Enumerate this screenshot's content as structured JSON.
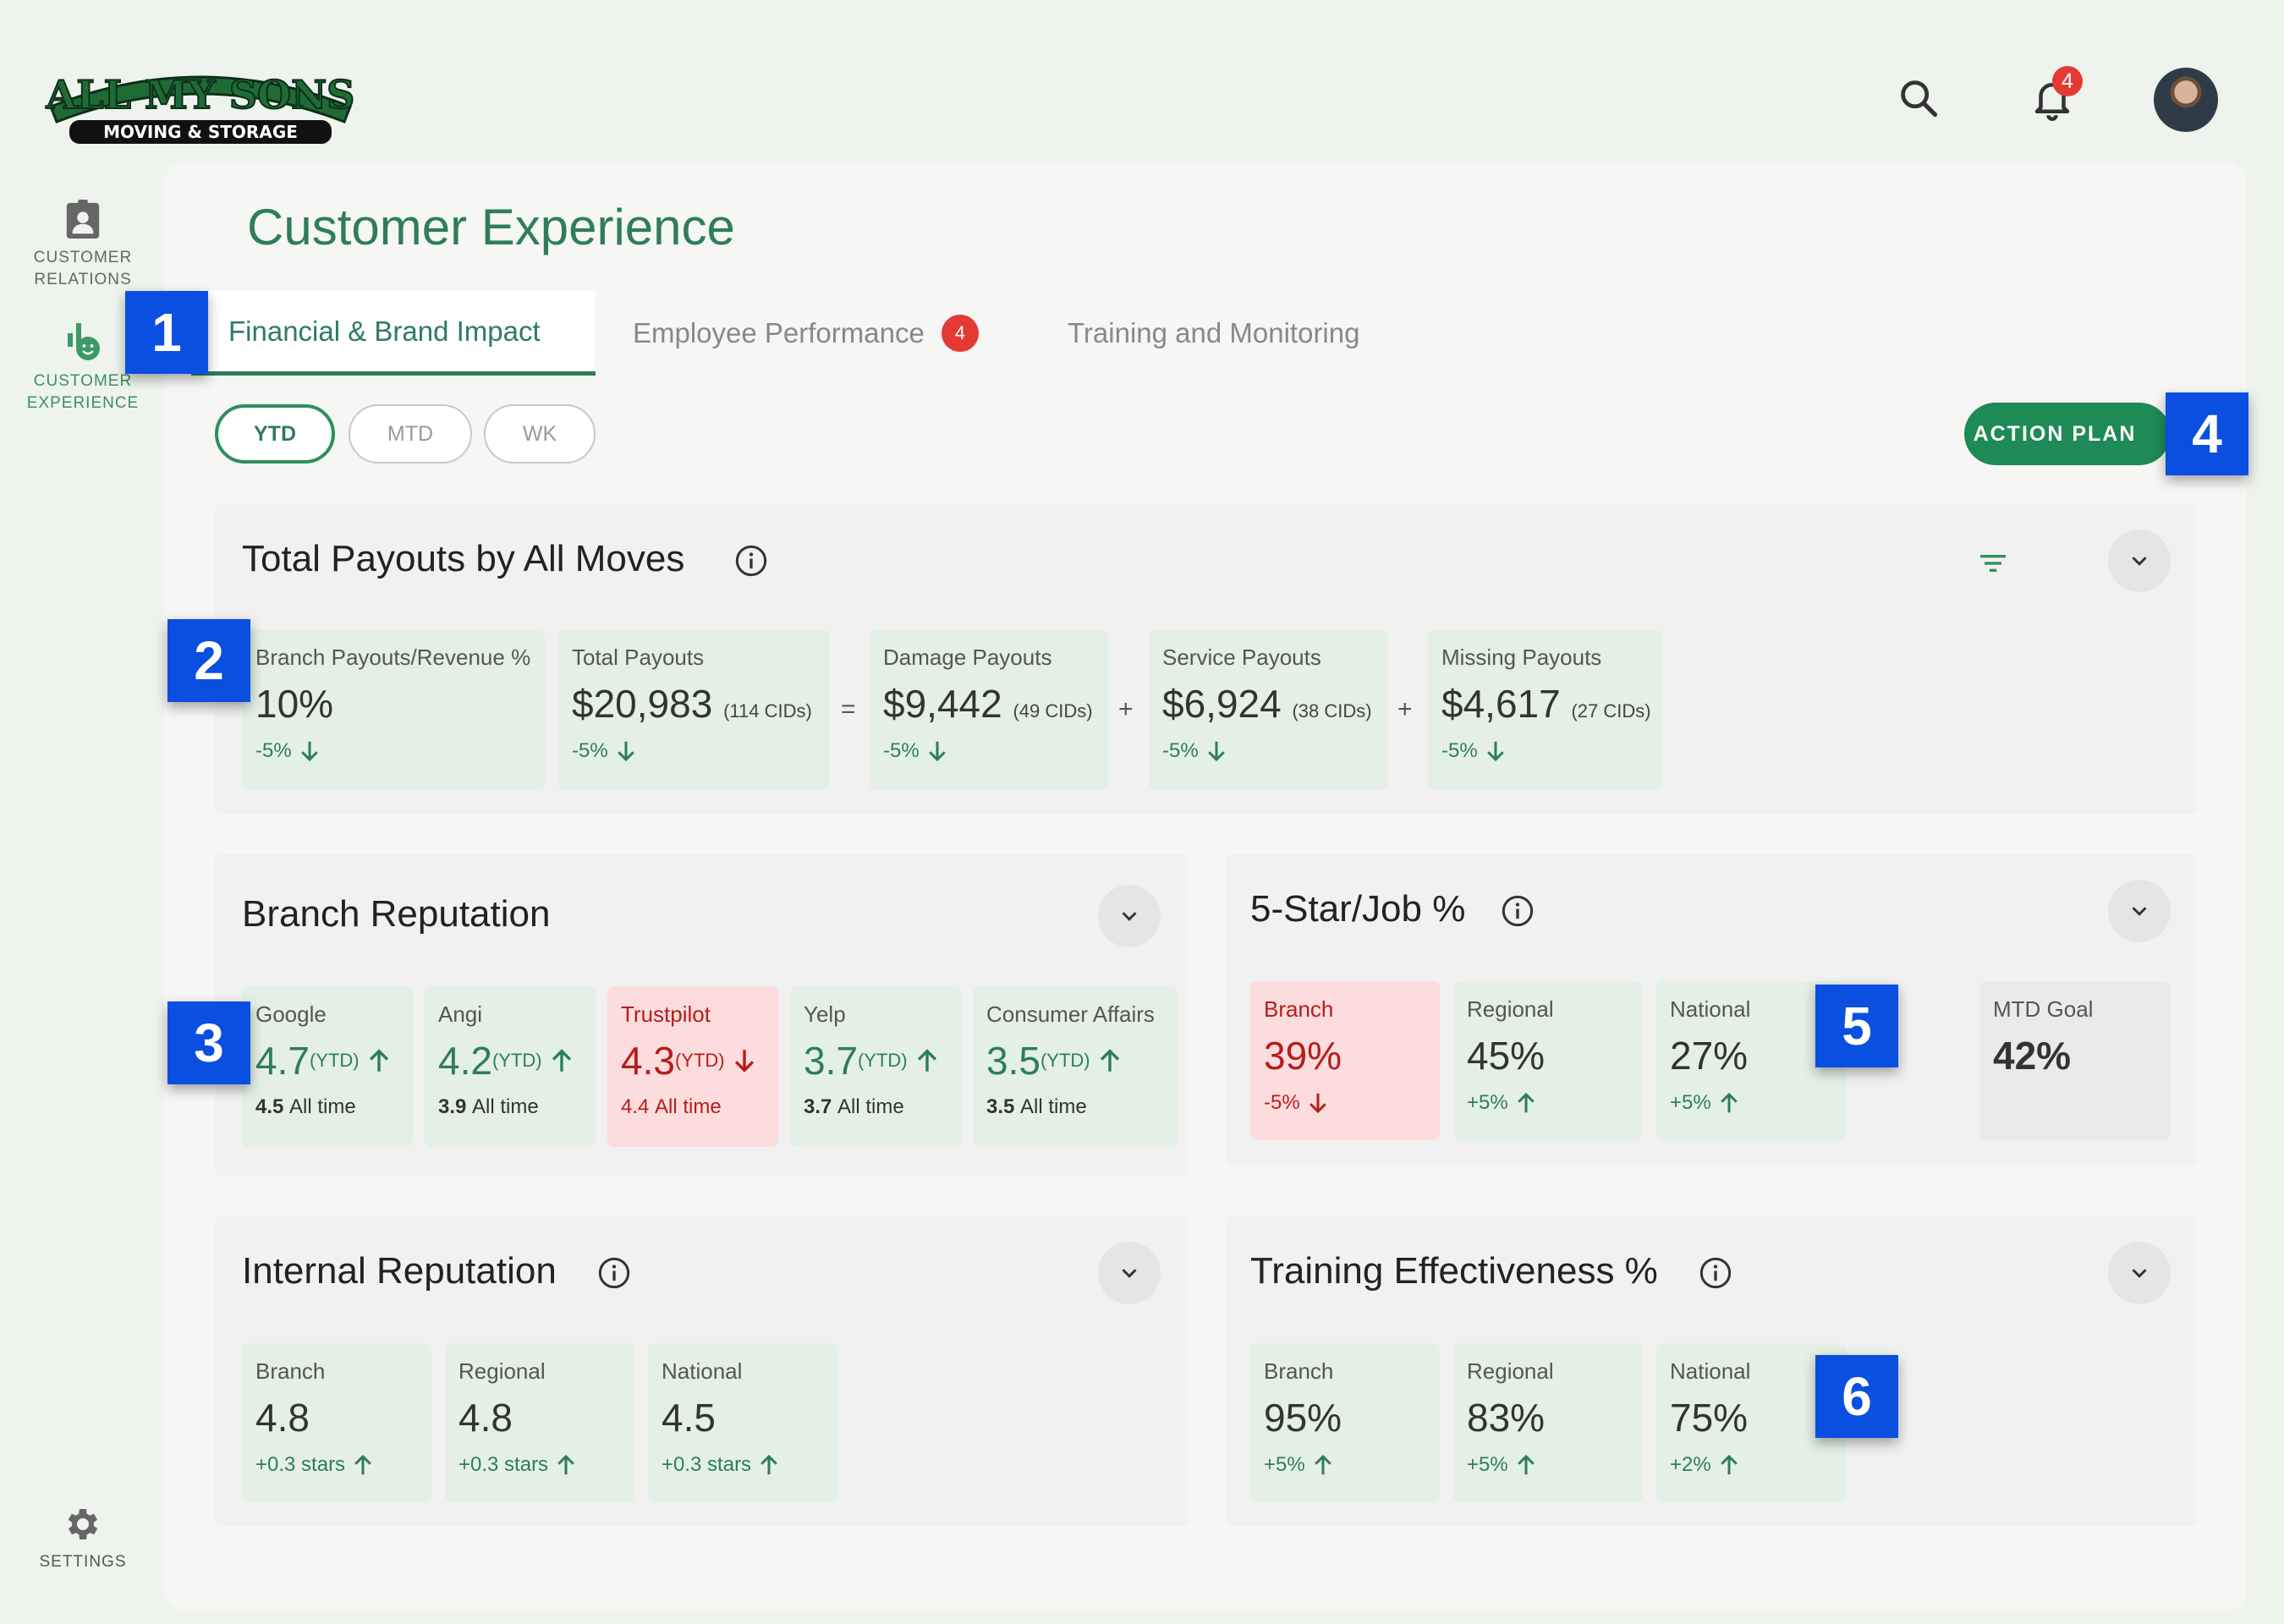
{
  "brand": {
    "logo_line1": "ALL MY SONS",
    "logo_line2": "MOVING & STORAGE",
    "accent": "#2e7d5b",
    "button_green": "#1e8a56",
    "alert_red": "#e53935",
    "marker_blue": "#0a4fe0"
  },
  "header": {
    "search_icon": "search-icon",
    "notification_count": "4"
  },
  "nav": {
    "customer_relations": "CUSTOMER RELATIONS",
    "customer_experience": "CUSTOMER EXPERIENCE",
    "settings": "SETTINGS"
  },
  "page": {
    "title": "Customer Experience"
  },
  "tabs": {
    "financial": "Financial & Brand Impact",
    "employee": "Employee Performance",
    "employee_badge": "4",
    "training": "Training and Monitoring"
  },
  "periods": {
    "ytd": "YTD",
    "mtd": "MTD",
    "wk": "WK"
  },
  "action_plan": "ACTION PLAN",
  "markers": [
    "1",
    "2",
    "3",
    "4",
    "5",
    "6"
  ],
  "payouts": {
    "title": "Total Payouts by All Moves",
    "cards": [
      {
        "label": "Branch Payouts/Revenue %",
        "value": "10%",
        "cids": "",
        "change": "-5%",
        "direction": "down"
      },
      {
        "label": "Total Payouts",
        "value": "$20,983",
        "cids": "(114 CIDs)",
        "change": "-5%",
        "direction": "down"
      },
      {
        "label": "Damage Payouts",
        "value": "$9,442",
        "cids": "(49 CIDs)",
        "change": "-5%",
        "direction": "down"
      },
      {
        "label": "Service Payouts",
        "value": "$6,924",
        "cids": "(38 CIDs)",
        "change": "-5%",
        "direction": "down"
      },
      {
        "label": "Missing Payouts",
        "value": "$4,617",
        "cids": "(27 CIDs)",
        "change": "-5%",
        "direction": "down"
      }
    ],
    "operators": [
      "=",
      "+",
      "+"
    ]
  },
  "branch_reputation": {
    "title": "Branch Reputation",
    "ytd_tag": "(YTD)",
    "all_time_suffix": "All time",
    "cards": [
      {
        "label": "Google",
        "value": "4.7",
        "all_time": "4.5",
        "direction": "up"
      },
      {
        "label": "Angi",
        "value": "4.2",
        "all_time": "3.9",
        "direction": "up"
      },
      {
        "label": "Trustpilot",
        "value": "4.3",
        "all_time": "4.4",
        "direction": "down"
      },
      {
        "label": "Yelp",
        "value": "3.7",
        "all_time": "3.7",
        "direction": "up"
      },
      {
        "label": "Consumer Affairs",
        "value": "3.5",
        "all_time": "3.5",
        "direction": "up"
      }
    ]
  },
  "five_star": {
    "title": "5-Star/Job %",
    "cards": [
      {
        "label": "Branch",
        "value": "39%",
        "change": "-5%",
        "direction": "down"
      },
      {
        "label": "Regional",
        "value": "45%",
        "change": "+5%",
        "direction": "up"
      },
      {
        "label": "National",
        "value": "27%",
        "change": "+5%",
        "direction": "up"
      }
    ],
    "goal": {
      "label": "MTD Goal",
      "value": "42%"
    }
  },
  "internal_reputation": {
    "title": "Internal Reputation",
    "cards": [
      {
        "label": "Branch",
        "value": "4.8",
        "change": "+0.3 stars",
        "direction": "up"
      },
      {
        "label": "Regional",
        "value": "4.8",
        "change": "+0.3 stars",
        "direction": "up"
      },
      {
        "label": "National",
        "value": "4.5",
        "change": "+0.3 stars",
        "direction": "up"
      }
    ]
  },
  "training_effectiveness": {
    "title": "Training Effectiveness %",
    "cards": [
      {
        "label": "Branch",
        "value": "95%",
        "change": "+5%",
        "direction": "up"
      },
      {
        "label": "Regional",
        "value": "83%",
        "change": "+5%",
        "direction": "up"
      },
      {
        "label": "National",
        "value": "75%",
        "change": "+2%",
        "direction": "up"
      }
    ]
  }
}
